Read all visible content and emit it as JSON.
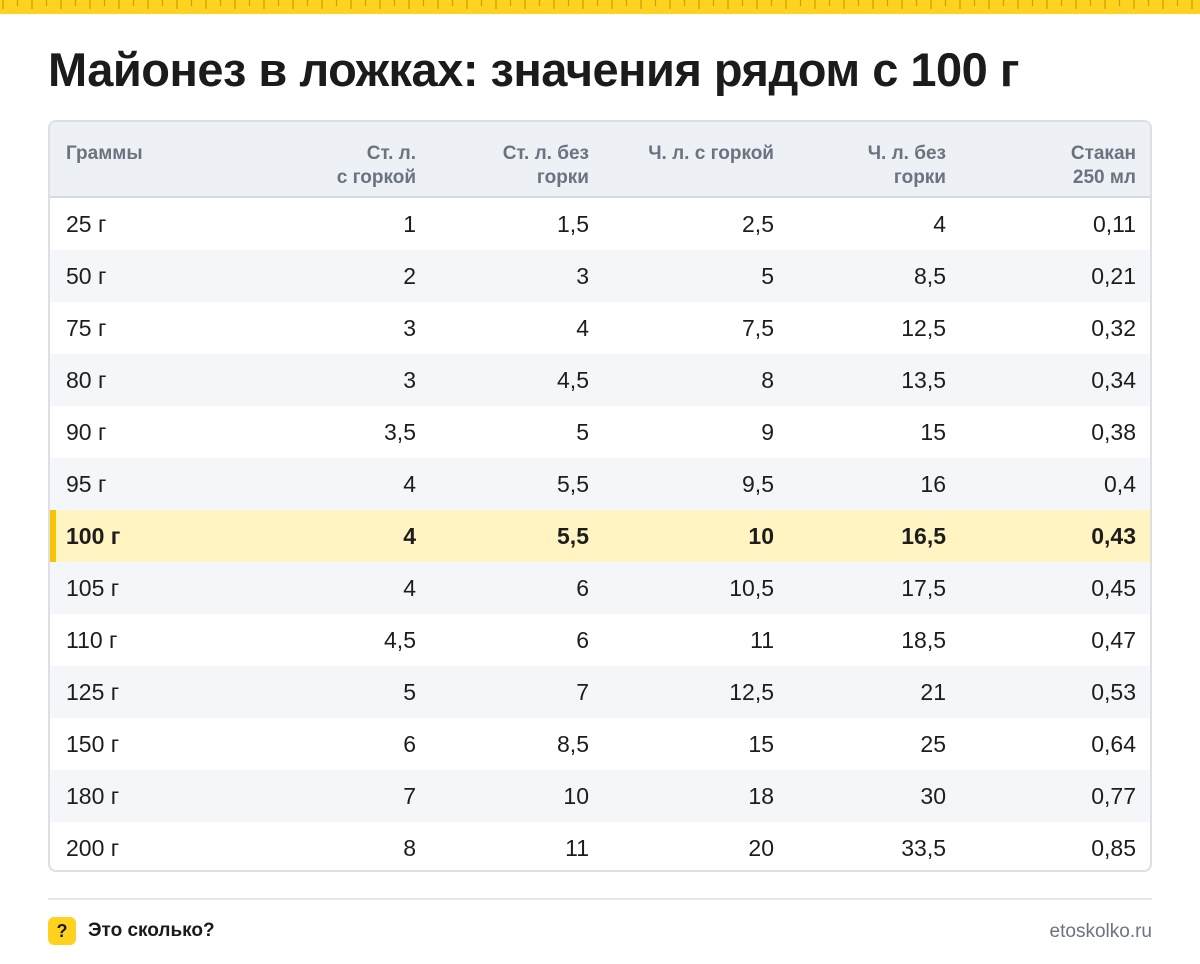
{
  "title": "Майонез в ложках: значения рядом с 100 г",
  "colors": {
    "accent": "#ffd21f",
    "highlight_row": "#fff4c2",
    "highlight_bar": "#f6c400",
    "header_bg": "#edf0f4"
  },
  "chart_data": {
    "type": "table",
    "title": "Майонез в ложках: значения рядом с 100 г",
    "columns": [
      [
        "Граммы"
      ],
      [
        "Ст. л.",
        "с горкой"
      ],
      [
        "Ст. л. без",
        "горки"
      ],
      [
        "Ч. л. с горкой"
      ],
      [
        "Ч. л. без",
        "горки"
      ],
      [
        "Стакан",
        "250 мл"
      ]
    ],
    "rows": [
      [
        "25 г",
        "1",
        "1,5",
        "2,5",
        "4",
        "0,11"
      ],
      [
        "50 г",
        "2",
        "3",
        "5",
        "8,5",
        "0,21"
      ],
      [
        "75 г",
        "3",
        "4",
        "7,5",
        "12,5",
        "0,32"
      ],
      [
        "80 г",
        "3",
        "4,5",
        "8",
        "13,5",
        "0,34"
      ],
      [
        "90 г",
        "3,5",
        "5",
        "9",
        "15",
        "0,38"
      ],
      [
        "95 г",
        "4",
        "5,5",
        "9,5",
        "16",
        "0,4"
      ],
      [
        "100 г",
        "4",
        "5,5",
        "10",
        "16,5",
        "0,43"
      ],
      [
        "105 г",
        "4",
        "6",
        "10,5",
        "17,5",
        "0,45"
      ],
      [
        "110 г",
        "4,5",
        "6",
        "11",
        "18,5",
        "0,47"
      ],
      [
        "125 г",
        "5",
        "7",
        "12,5",
        "21",
        "0,53"
      ],
      [
        "150 г",
        "6",
        "8,5",
        "15",
        "25",
        "0,64"
      ],
      [
        "180 г",
        "7",
        "10",
        "18",
        "30",
        "0,77"
      ],
      [
        "200 г",
        "8",
        "11",
        "20",
        "33,5",
        "0,85"
      ]
    ],
    "highlighted_row": 6
  },
  "footer": {
    "badge": "?",
    "brand": "Это сколько?",
    "site": "etoskolko.ru"
  }
}
